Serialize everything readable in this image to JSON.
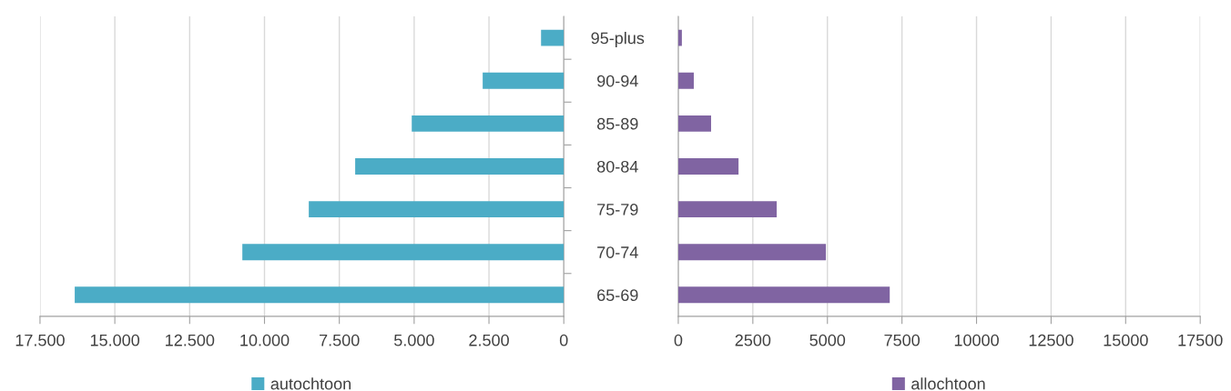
{
  "chart_data": [
    {
      "type": "bar",
      "orientation": "horizontal",
      "categories": [
        null,
        null,
        null,
        null,
        null,
        null,
        null
      ],
      "series": [
        {
          "name": "autochtoon",
          "color": "#4bacc6",
          "values": [
            760,
            2710,
            5080,
            6970,
            8520,
            10740,
            16340
          ]
        }
      ],
      "xlim": [
        17500,
        0
      ],
      "xticks": [
        {
          "value": 17500,
          "label": "17.500"
        },
        {
          "value": 15000,
          "label": "15.000"
        },
        {
          "value": 12500,
          "label": "12.500"
        },
        {
          "value": 10000,
          "label": "10.000"
        },
        {
          "value": 7500,
          "label": "7.500"
        },
        {
          "value": 5000,
          "label": "5.000"
        },
        {
          "value": 2500,
          "label": "2.500"
        },
        0
      ],
      "grid": "x",
      "legend": "bottom"
    },
    {
      "type": "bar",
      "orientation": "horizontal",
      "categories": [
        "95-plus",
        "90-94",
        "85-89",
        "80-84",
        "75-79",
        "70-74",
        "65-69"
      ],
      "series": [
        {
          "name": "allochtoon",
          "color": "#8064a2",
          "values": [
            120,
            520,
            1100,
            2020,
            3300,
            4950,
            7090
          ]
        }
      ],
      "xlim": [
        0,
        17500
      ],
      "xticks": [
        0,
        2500,
        5000,
        7500,
        10000,
        12500,
        15000,
        17500
      ],
      "grid": "x",
      "legend": "bottom"
    }
  ]
}
